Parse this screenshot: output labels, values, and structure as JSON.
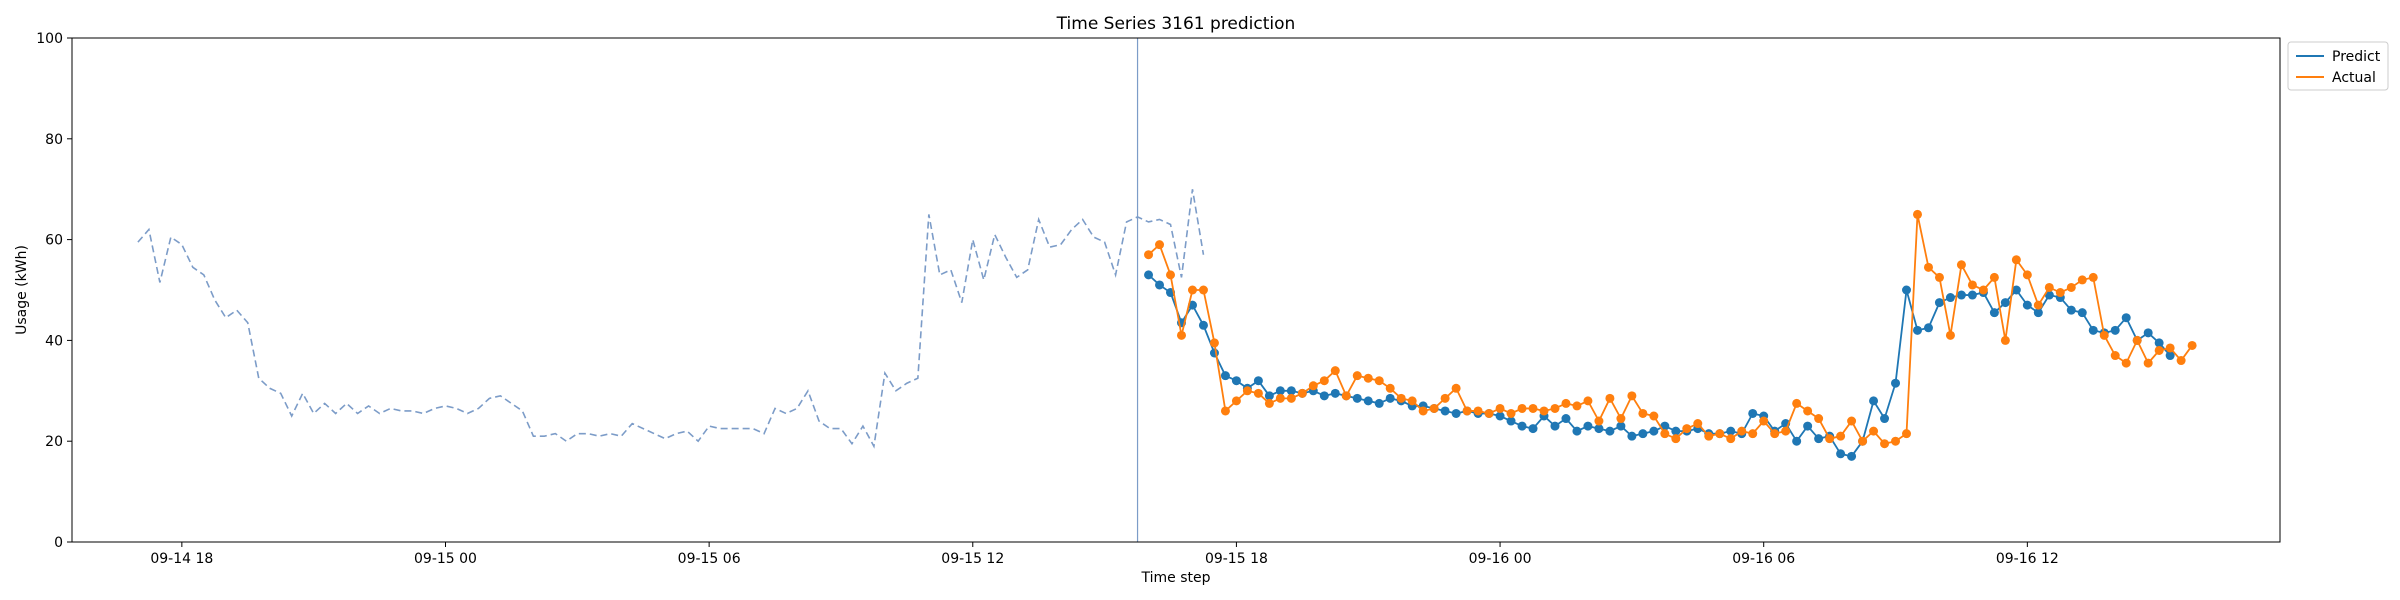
{
  "chart_data": {
    "type": "line",
    "title": "Time Series 3161 prediction",
    "xlabel": "Time step",
    "ylabel": "Usage (kWh)",
    "ylim": [
      0,
      100
    ],
    "yticks": [
      0,
      20,
      40,
      60,
      80,
      100
    ],
    "xlim": [
      "2024-09-14 15:30",
      "2024-09-16 17:45"
    ],
    "xticks": [
      {
        "label": "09-14 18",
        "time": "2024-09-14 18:00"
      },
      {
        "label": "09-15 00",
        "time": "2024-09-15 00:00"
      },
      {
        "label": "09-15 06",
        "time": "2024-09-15 06:00"
      },
      {
        "label": "09-15 12",
        "time": "2024-09-15 12:00"
      },
      {
        "label": "09-15 18",
        "time": "2024-09-15 18:00"
      },
      {
        "label": "09-16 00",
        "time": "2024-09-16 00:00"
      },
      {
        "label": "09-16 06",
        "time": "2024-09-16 06:00"
      },
      {
        "label": "09-16 12",
        "time": "2024-09-16 12:00"
      }
    ],
    "grid": false,
    "legend_position": "top-right (outside plot)",
    "forecast_start": "2024-09-15 15:45",
    "series": [
      {
        "name": "",
        "color": "#7c9cc8",
        "style": "dashed",
        "start": "2024-09-14 17:00",
        "interval_minutes": 15,
        "values": [
          59.5,
          62.0,
          51.5,
          60.5,
          59.0,
          54.5,
          53.0,
          48.0,
          44.5,
          46.0,
          43.5,
          32.5,
          30.5,
          29.5,
          25.0,
          29.5,
          25.5,
          27.5,
          25.5,
          27.5,
          25.5,
          27.0,
          25.5,
          26.5,
          26.0,
          26.0,
          25.5,
          26.5,
          27.0,
          26.5,
          25.5,
          26.5,
          28.5,
          29.0,
          27.5,
          26.0,
          21.0,
          21.0,
          21.5,
          20.0,
          21.5,
          21.5,
          21.0,
          21.5,
          21.0,
          23.5,
          22.5,
          21.5,
          20.5,
          21.5,
          22.0,
          20.0,
          23.0,
          22.5,
          22.5,
          22.5,
          22.5,
          21.5,
          26.5,
          25.5,
          26.5,
          30.0,
          24.0,
          22.5,
          22.5,
          19.5,
          23.0,
          19.0,
          33.5,
          30.0,
          31.5,
          32.5,
          65.0,
          53.0,
          54.0,
          47.5,
          60.0,
          52.0,
          61.0,
          56.5,
          52.5,
          54.0,
          64.0,
          58.5,
          59.0,
          62.0,
          64.0,
          60.5,
          59.5,
          53.0,
          63.5,
          64.5,
          63.5,
          64.0,
          63.0,
          52.5,
          70.0,
          57.0
        ]
      },
      {
        "name": "Predict",
        "color": "#1f77b4",
        "style": "solid-markers",
        "start": "2024-09-15 16:00",
        "interval_minutes": 15,
        "values": [
          53.0,
          51.0,
          49.5,
          43.5,
          47.0,
          43.0,
          37.5,
          33.0,
          32.0,
          30.5,
          32.0,
          29.0,
          30.0,
          30.0,
          29.5,
          30.0,
          29.0,
          29.5,
          29.0,
          28.5,
          28.0,
          27.5,
          28.5,
          28.0,
          27.0,
          27.0,
          26.5,
          26.0,
          25.5,
          26.0,
          25.5,
          25.5,
          25.0,
          24.0,
          23.0,
          22.5,
          25.0,
          23.0,
          24.5,
          22.0,
          23.0,
          22.5,
          22.0,
          23.0,
          21.0,
          21.5,
          22.0,
          23.0,
          22.0,
          22.0,
          22.5,
          21.5,
          21.5,
          22.0,
          21.5,
          25.5,
          25.0,
          22.0,
          23.5,
          20.0,
          23.0,
          20.5,
          21.0,
          17.5,
          17.0,
          20.0,
          28.0,
          24.5,
          31.5,
          50.0,
          42.0,
          42.5,
          47.5,
          48.5,
          49.0,
          49.0,
          49.5,
          45.5,
          47.5,
          50.0,
          47.0,
          45.5,
          49.0,
          48.5,
          46.0,
          45.5,
          42.0,
          41.5,
          42.0,
          44.5,
          40.0,
          41.5,
          39.5,
          37.0
        ]
      },
      {
        "name": "Actual",
        "color": "#ff7f0e",
        "style": "solid-markers",
        "start": "2024-09-15 16:00",
        "interval_minutes": 15,
        "values": [
          57.0,
          59.0,
          53.0,
          41.0,
          50.0,
          50.0,
          39.5,
          26.0,
          28.0,
          30.0,
          29.5,
          27.5,
          28.5,
          28.5,
          29.5,
          31.0,
          32.0,
          34.0,
          29.0,
          33.0,
          32.5,
          32.0,
          30.5,
          28.5,
          28.0,
          26.0,
          26.5,
          28.5,
          30.5,
          26.0,
          26.0,
          25.5,
          26.5,
          25.5,
          26.5,
          26.5,
          26.0,
          26.5,
          27.5,
          27.0,
          28.0,
          24.0,
          28.5,
          24.5,
          29.0,
          25.5,
          25.0,
          21.5,
          20.5,
          22.5,
          23.5,
          21.0,
          21.5,
          20.5,
          22.0,
          21.5,
          24.0,
          21.5,
          22.0,
          27.5,
          26.0,
          24.5,
          20.5,
          21.0,
          24.0,
          20.0,
          22.0,
          19.5,
          20.0,
          21.5,
          65.0,
          54.5,
          52.5,
          41.0,
          55.0,
          51.0,
          50.0,
          52.5,
          40.0,
          56.0,
          53.0,
          47.0,
          50.5,
          49.5,
          50.5,
          52.0,
          52.5,
          41.0,
          37.0,
          35.5,
          40.0,
          35.5,
          38.0,
          38.5,
          36.0,
          39.0
        ]
      }
    ]
  }
}
